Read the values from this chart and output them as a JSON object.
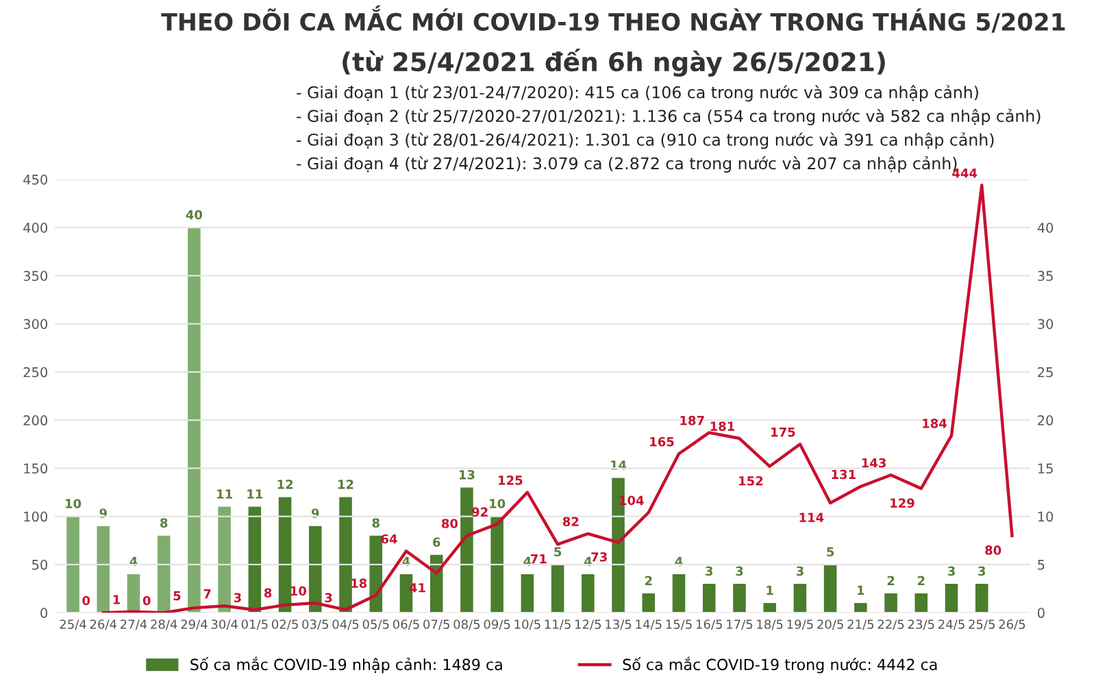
{
  "chart_data": {
    "type": "bar",
    "title": "THEO DÕI CA MẮC MỚI COVID-19 THEO NGÀY TRONG THÁNG 5/2021",
    "subtitle": "(từ 25/4/2021 đến 6h ngày 26/5/2021)",
    "annotations": [
      "- Giai đoạn 1 (từ 23/01-24/7/2020): 415 ca (106 ca trong nước và 309 ca nhập cảnh)",
      "- Giai đoạn 2 (từ 25/7/2020-27/01/2021): 1.136 ca (554 ca trong nước và 582 ca nhập cảnh)",
      "- Giai đoạn 3 (từ 28/01-26/4/2021): 1.301 ca (910 ca trong nước và 391 ca nhập cảnh)",
      "- Giai đoạn 4 (từ 27/4/2021): 3.079 ca (2.872 ca trong nước và 207 ca nhập cảnh)"
    ],
    "categories": [
      "25/4",
      "26/4",
      "27/4",
      "28/4",
      "29/4",
      "30/4",
      "01/5",
      "02/5",
      "03/5",
      "04/5",
      "05/5",
      "06/5",
      "07/5",
      "08/5",
      "09/5",
      "10/5",
      "11/5",
      "12/5",
      "13/5",
      "14/5",
      "15/5",
      "16/5",
      "17/5",
      "18/5",
      "19/5",
      "20/5",
      "21/5",
      "22/5",
      "23/5",
      "24/5",
      "25/5",
      "26/5"
    ],
    "series": [
      {
        "name": "Số ca mắc COVID-19 nhập cảnh: 1489 ca",
        "axis": "y2",
        "color": "#4a7d2c",
        "colors": [
          "#7fad6e",
          "#7fad6e",
          "#7fad6e",
          "#7fad6e",
          "#7fad6e",
          "#7fad6e",
          "#4a7d2c",
          "#4a7d2c",
          "#4a7d2c",
          "#4a7d2c",
          "#4a7d2c",
          "#4a7d2c",
          "#4a7d2c",
          "#4a7d2c",
          "#4a7d2c",
          "#4a7d2c",
          "#4a7d2c",
          "#4a7d2c",
          "#4a7d2c",
          "#4a7d2c",
          "#4a7d2c",
          "#4a7d2c",
          "#4a7d2c",
          "#4a7d2c",
          "#4a7d2c",
          "#4a7d2c",
          "#4a7d2c",
          "#4a7d2c",
          "#4a7d2c",
          "#4a7d2c",
          "#4a7d2c",
          "#4a7d2c"
        ],
        "values": [
          10,
          9,
          4,
          8,
          40,
          11,
          11,
          12,
          9,
          12,
          8,
          4,
          6,
          13,
          10,
          4,
          5,
          4,
          14,
          2,
          4,
          3,
          3,
          1,
          3,
          5,
          1,
          2,
          2,
          3,
          3,
          null
        ]
      },
      {
        "name": "Số ca mắc COVID-19 trong nước: 4442 ca",
        "type": "line",
        "color": "#c8102e",
        "values": [
          null,
          0,
          1,
          0,
          5,
          7,
          3,
          8,
          10,
          3,
          18,
          64,
          41,
          80,
          92,
          125,
          71,
          82,
          73,
          104,
          165,
          187,
          181,
          152,
          175,
          114,
          131,
          143,
          129,
          184,
          444,
          80
        ]
      }
    ],
    "ylim": [
      0,
      450
    ],
    "yticks": [
      0,
      50,
      100,
      150,
      200,
      250,
      300,
      350,
      400,
      450
    ],
    "y2lim": [
      0,
      45
    ],
    "y2ticks": [
      0,
      5,
      10,
      15,
      20,
      25,
      30,
      35,
      40
    ],
    "grid": "y",
    "legend": "bottom",
    "data_labels": true,
    "marker": "none",
    "line_style": "solid"
  }
}
